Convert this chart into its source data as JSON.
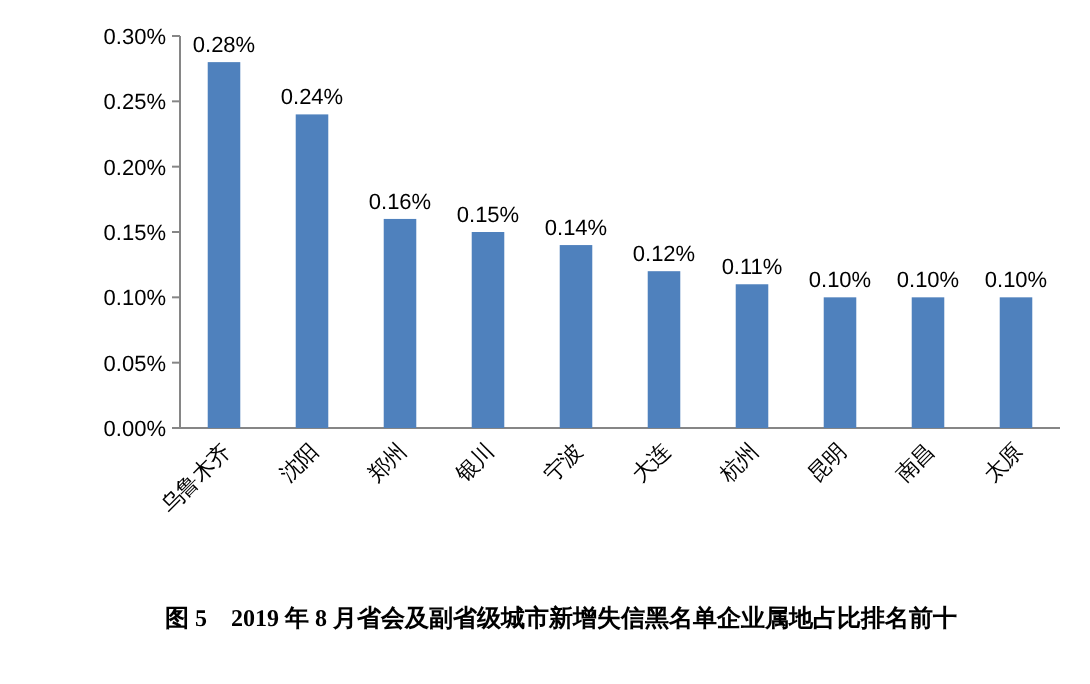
{
  "chart_data": {
    "type": "bar",
    "categories": [
      "乌鲁木齐",
      "沈阳",
      "郑州",
      "银川",
      "宁波",
      "大连",
      "杭州",
      "昆明",
      "南昌",
      "太原"
    ],
    "values": [
      0.28,
      0.24,
      0.16,
      0.15,
      0.14,
      0.12,
      0.11,
      0.1,
      0.1,
      0.1
    ],
    "value_labels": [
      "0.28%",
      "0.24%",
      "0.16%",
      "0.15%",
      "0.14%",
      "0.12%",
      "0.11%",
      "0.10%",
      "0.10%",
      "0.10%"
    ],
    "color": "#4f81bd",
    "ylim": [
      0,
      0.3
    ],
    "yticks": [
      {
        "value": 0,
        "label": "0.00%"
      },
      {
        "value": 0.05,
        "label": "0.05%"
      },
      {
        "value": 0.1,
        "label": "0.10%"
      },
      {
        "value": 0.15,
        "label": "0.15%"
      },
      {
        "value": 0.2,
        "label": "0.20%"
      },
      {
        "value": 0.25,
        "label": "0.25%"
      },
      {
        "value": 0.3,
        "label": "0.30%"
      }
    ],
    "grid": false,
    "annotations": [
      "图 5　2019 年 8 月省会及副省级城市新增失信黑名单企业属地占比排名前十"
    ]
  }
}
